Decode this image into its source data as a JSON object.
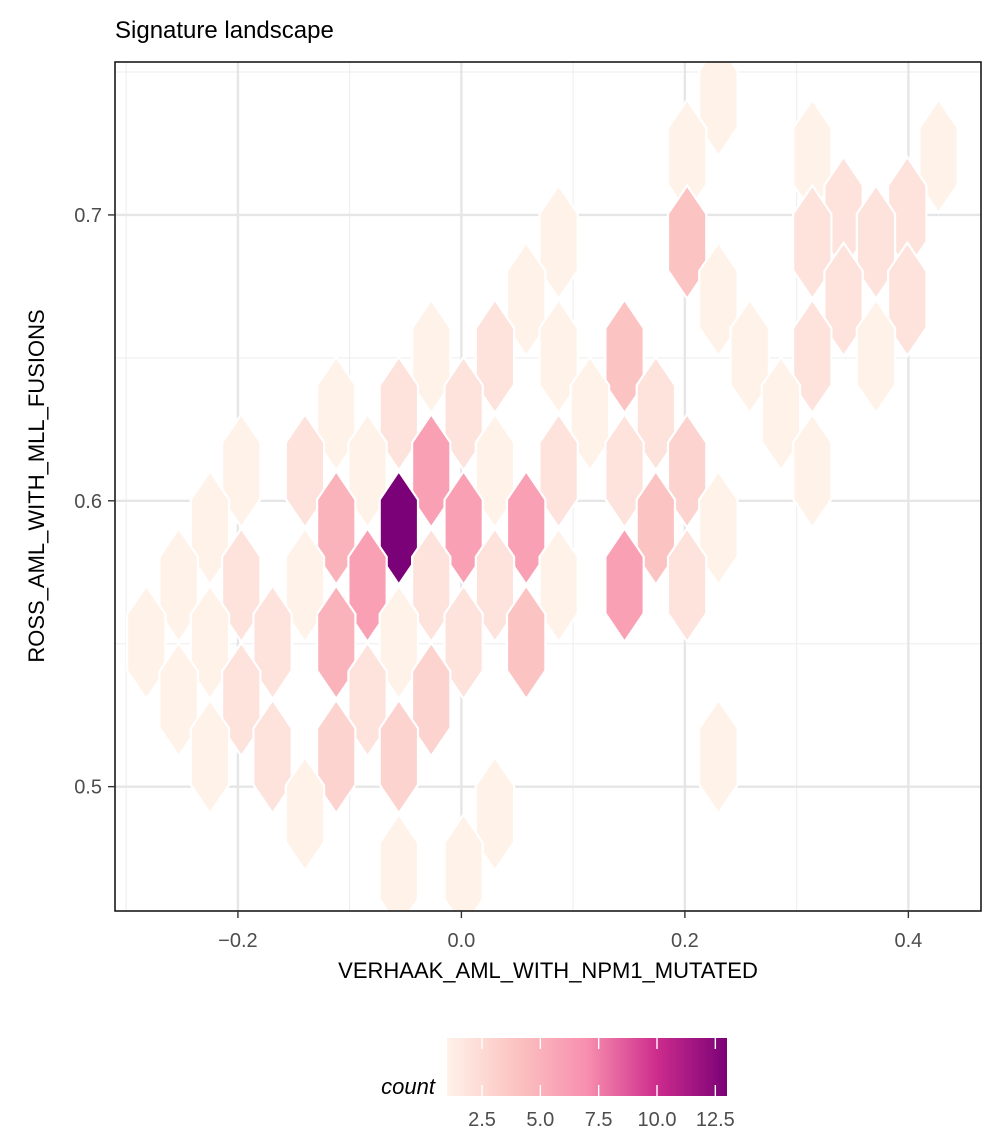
{
  "chart_data": {
    "type": "hexbin",
    "title": "Signature landscape",
    "xlabel": "VERHAAK_AML_WITH_NPM1_MUTATED",
    "ylabel": "ROSS_AML_WITH_MLL_FUSIONS",
    "xlim": [
      -0.31,
      0.465
    ],
    "ylim": [
      0.4565,
      0.7535
    ],
    "x_ticks": [
      -0.2,
      0.0,
      0.2,
      0.4
    ],
    "x_tick_labels": [
      "−0.2",
      "0.0",
      "0.2",
      "0.4"
    ],
    "y_ticks": [
      0.5,
      0.6,
      0.7
    ],
    "y_tick_labels": [
      "0.5",
      "0.6",
      "0.7"
    ],
    "grid": true,
    "hex_radius": 0.0198,
    "legend": {
      "title": "count",
      "position": "bottom",
      "min": 1,
      "max": 13,
      "ticks": [
        2.5,
        5.0,
        7.5,
        10.0,
        12.5
      ],
      "tick_labels": [
        "2.5",
        "5.0",
        "7.5",
        "10.0",
        "12.5"
      ],
      "colors": [
        "#fff2e9",
        "#fbc3c1",
        "#f88faf",
        "#cd2c8c",
        "#7a0177"
      ]
    },
    "bins": [
      {
        "x": 0.23,
        "y": 0.7405,
        "count": 1
      },
      {
        "x": 0.202,
        "y": 0.7205,
        "count": 1
      },
      {
        "x": 0.314,
        "y": 0.7205,
        "count": 1
      },
      {
        "x": 0.427,
        "y": 0.7205,
        "count": 1
      },
      {
        "x": 0.342,
        "y": 0.7005,
        "count": 2
      },
      {
        "x": 0.399,
        "y": 0.7005,
        "count": 2
      },
      {
        "x": 0.087,
        "y": 0.6905,
        "count": 1
      },
      {
        "x": 0.202,
        "y": 0.6905,
        "count": 4
      },
      {
        "x": 0.314,
        "y": 0.6905,
        "count": 2
      },
      {
        "x": 0.371,
        "y": 0.6905,
        "count": 2
      },
      {
        "x": 0.058,
        "y": 0.6705,
        "count": 1
      },
      {
        "x": 0.23,
        "y": 0.6705,
        "count": 1
      },
      {
        "x": 0.342,
        "y": 0.6705,
        "count": 2
      },
      {
        "x": 0.399,
        "y": 0.6705,
        "count": 2
      },
      {
        "x": -0.027,
        "y": 0.6505,
        "count": 1
      },
      {
        "x": 0.03,
        "y": 0.6505,
        "count": 2
      },
      {
        "x": 0.087,
        "y": 0.6505,
        "count": 1
      },
      {
        "x": 0.146,
        "y": 0.6505,
        "count": 4
      },
      {
        "x": 0.258,
        "y": 0.6505,
        "count": 1
      },
      {
        "x": 0.314,
        "y": 0.6505,
        "count": 2
      },
      {
        "x": 0.371,
        "y": 0.6505,
        "count": 1
      },
      {
        "x": -0.112,
        "y": 0.6305,
        "count": 1
      },
      {
        "x": -0.056,
        "y": 0.6305,
        "count": 2
      },
      {
        "x": 0.002,
        "y": 0.6305,
        "count": 2
      },
      {
        "x": 0.115,
        "y": 0.6305,
        "count": 1
      },
      {
        "x": 0.174,
        "y": 0.6305,
        "count": 2
      },
      {
        "x": 0.286,
        "y": 0.6305,
        "count": 1
      },
      {
        "x": -0.197,
        "y": 0.6105,
        "count": 1
      },
      {
        "x": -0.14,
        "y": 0.6105,
        "count": 2
      },
      {
        "x": -0.084,
        "y": 0.6105,
        "count": 1
      },
      {
        "x": -0.027,
        "y": 0.6105,
        "count": 6
      },
      {
        "x": 0.03,
        "y": 0.6105,
        "count": 1
      },
      {
        "x": 0.087,
        "y": 0.6105,
        "count": 2
      },
      {
        "x": 0.146,
        "y": 0.6105,
        "count": 2
      },
      {
        "x": 0.202,
        "y": 0.6105,
        "count": 3
      },
      {
        "x": 0.314,
        "y": 0.6105,
        "count": 1
      },
      {
        "x": -0.225,
        "y": 0.5905,
        "count": 1
      },
      {
        "x": -0.112,
        "y": 0.5905,
        "count": 5
      },
      {
        "x": -0.056,
        "y": 0.5905,
        "count": 13
      },
      {
        "x": 0.002,
        "y": 0.5905,
        "count": 6
      },
      {
        "x": 0.058,
        "y": 0.5905,
        "count": 6
      },
      {
        "x": 0.174,
        "y": 0.5905,
        "count": 4
      },
      {
        "x": 0.23,
        "y": 0.5905,
        "count": 1
      },
      {
        "x": -0.253,
        "y": 0.5705,
        "count": 1
      },
      {
        "x": -0.197,
        "y": 0.5705,
        "count": 2
      },
      {
        "x": -0.14,
        "y": 0.5705,
        "count": 1
      },
      {
        "x": -0.084,
        "y": 0.5705,
        "count": 6
      },
      {
        "x": -0.027,
        "y": 0.5705,
        "count": 2
      },
      {
        "x": 0.03,
        "y": 0.5705,
        "count": 2
      },
      {
        "x": 0.087,
        "y": 0.5705,
        "count": 1
      },
      {
        "x": 0.146,
        "y": 0.5705,
        "count": 6
      },
      {
        "x": 0.202,
        "y": 0.5705,
        "count": 2
      },
      {
        "x": -0.282,
        "y": 0.5505,
        "count": 1
      },
      {
        "x": -0.225,
        "y": 0.5505,
        "count": 1
      },
      {
        "x": -0.169,
        "y": 0.5505,
        "count": 2
      },
      {
        "x": -0.112,
        "y": 0.5505,
        "count": 5
      },
      {
        "x": -0.056,
        "y": 0.5505,
        "count": 1
      },
      {
        "x": 0.002,
        "y": 0.5505,
        "count": 2
      },
      {
        "x": 0.058,
        "y": 0.5505,
        "count": 4
      },
      {
        "x": -0.253,
        "y": 0.5305,
        "count": 1
      },
      {
        "x": -0.197,
        "y": 0.5305,
        "count": 2
      },
      {
        "x": -0.084,
        "y": 0.5305,
        "count": 2
      },
      {
        "x": -0.027,
        "y": 0.5305,
        "count": 3
      },
      {
        "x": -0.225,
        "y": 0.5105,
        "count": 1
      },
      {
        "x": -0.169,
        "y": 0.5105,
        "count": 2
      },
      {
        "x": -0.112,
        "y": 0.5105,
        "count": 3
      },
      {
        "x": -0.056,
        "y": 0.5105,
        "count": 3
      },
      {
        "x": 0.23,
        "y": 0.5105,
        "count": 1
      },
      {
        "x": -0.14,
        "y": 0.4905,
        "count": 1
      },
      {
        "x": 0.03,
        "y": 0.4905,
        "count": 1
      },
      {
        "x": -0.056,
        "y": 0.4705,
        "count": 1
      },
      {
        "x": 0.002,
        "y": 0.4705,
        "count": 1
      }
    ]
  }
}
